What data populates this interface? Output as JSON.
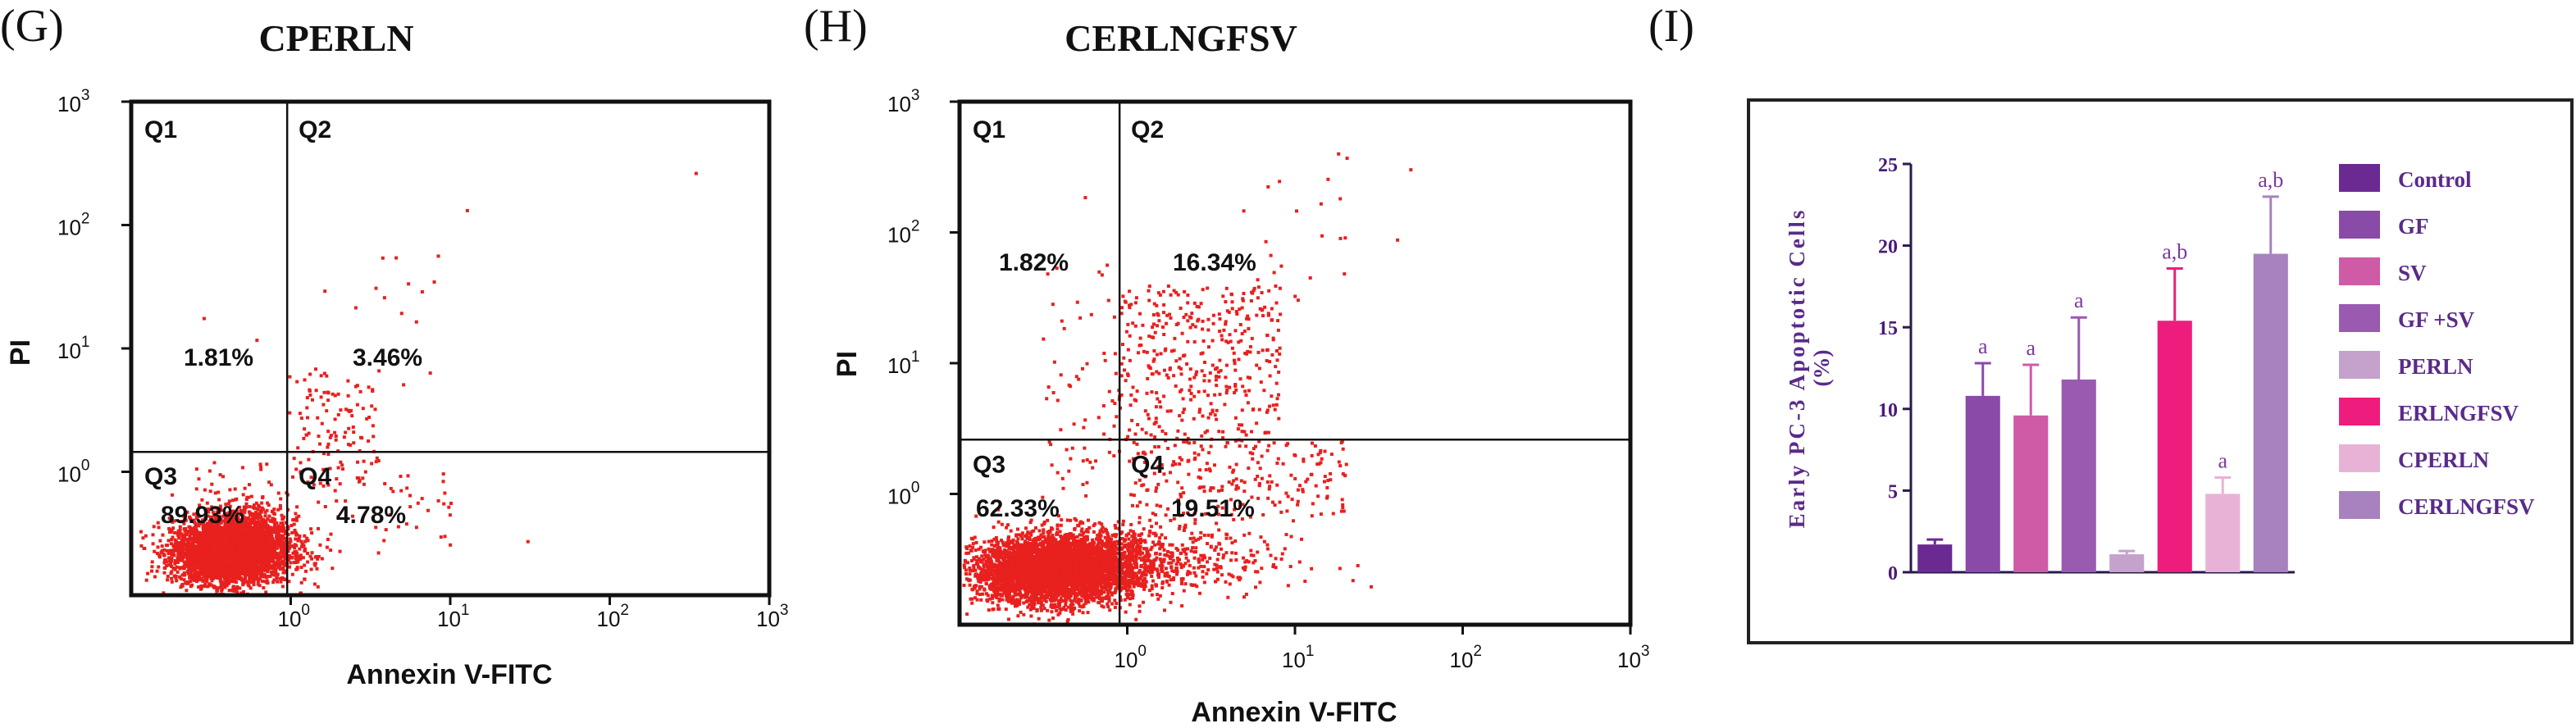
{
  "panels": {
    "g": {
      "letter": "(G)",
      "title": "CPERLN"
    },
    "h": {
      "letter": "(H)",
      "title": "CERLNGFSV"
    },
    "i": {
      "letter": "(I)"
    }
  },
  "chart_data": [
    {
      "type": "scatter",
      "id": "G",
      "title": "CPERLN",
      "xlabel": "Annexin V-FITC",
      "ylabel": "PI",
      "xscale": "log",
      "yscale": "log",
      "xlim_decades": [
        -1,
        3
      ],
      "ylim_decades": [
        -1,
        3
      ],
      "x_ticks": [
        {
          "base": "10",
          "exp": "0"
        },
        {
          "base": "10",
          "exp": "1"
        },
        {
          "base": "10",
          "exp": "2"
        },
        {
          "base": "10",
          "exp": "3"
        }
      ],
      "y_ticks": [
        {
          "base": "10",
          "exp": "0"
        },
        {
          "base": "10",
          "exp": "1"
        },
        {
          "base": "10",
          "exp": "2"
        },
        {
          "base": "10",
          "exp": "3"
        }
      ],
      "gate": {
        "x": 0.95,
        "y": 1.45
      },
      "quadrants": [
        {
          "name": "Q1",
          "percent": "1.81%"
        },
        {
          "name": "Q2",
          "percent": "3.46%"
        },
        {
          "name": "Q3",
          "percent": "89.93%"
        },
        {
          "name": "Q4",
          "percent": "4.78%"
        }
      ],
      "point_color": "#e8201e"
    },
    {
      "type": "scatter",
      "id": "H",
      "title": "CERLNGFSV",
      "xlabel": "Annexin V-FITC",
      "ylabel": "PI",
      "xscale": "log",
      "yscale": "log",
      "xlim_decades": [
        -1,
        3
      ],
      "ylim_decades": [
        -1,
        3
      ],
      "x_ticks": [
        {
          "base": "10",
          "exp": "0"
        },
        {
          "base": "10",
          "exp": "1"
        },
        {
          "base": "10",
          "exp": "2"
        },
        {
          "base": "10",
          "exp": "3"
        }
      ],
      "y_ticks": [
        {
          "base": "10",
          "exp": "0"
        },
        {
          "base": "10",
          "exp": "1"
        },
        {
          "base": "10",
          "exp": "2"
        },
        {
          "base": "10",
          "exp": "3"
        }
      ],
      "gate": {
        "x": 0.9,
        "y": 2.6
      },
      "quadrants": [
        {
          "name": "Q1",
          "percent": "1.82%"
        },
        {
          "name": "Q2",
          "percent": "16.34%"
        },
        {
          "name": "Q3",
          "percent": "62.33%"
        },
        {
          "name": "Q4",
          "percent": "19.51%"
        }
      ],
      "point_color": "#e8201e"
    },
    {
      "type": "bar",
      "id": "I",
      "ylabel_line1": "Early PC-3 Apoptotic Cells",
      "ylabel_line2": "(%)",
      "ylim": [
        0,
        25
      ],
      "yticks": [
        0,
        5,
        10,
        15,
        20,
        25
      ],
      "categories": [
        "Control",
        "GF",
        "SV",
        "GF +SV",
        "PERLN",
        "ERLNGFSV",
        "CPERLN",
        "CERLNGFSV"
      ],
      "values": [
        1.7,
        10.8,
        9.6,
        11.8,
        1.1,
        15.4,
        4.8,
        19.5
      ],
      "errors": [
        0.3,
        2.0,
        3.1,
        3.8,
        0.2,
        3.2,
        1.0,
        3.5
      ],
      "significance": [
        "",
        "a",
        "a",
        "a",
        "",
        "a,b",
        "a",
        "a,b"
      ],
      "colors": [
        "#6a2a92",
        "#8a4aa8",
        "#cf5aa6",
        "#9a5ab0",
        "#c4a2cc",
        "#ee1c7c",
        "#e8b2d6",
        "#a882be"
      ]
    }
  ]
}
